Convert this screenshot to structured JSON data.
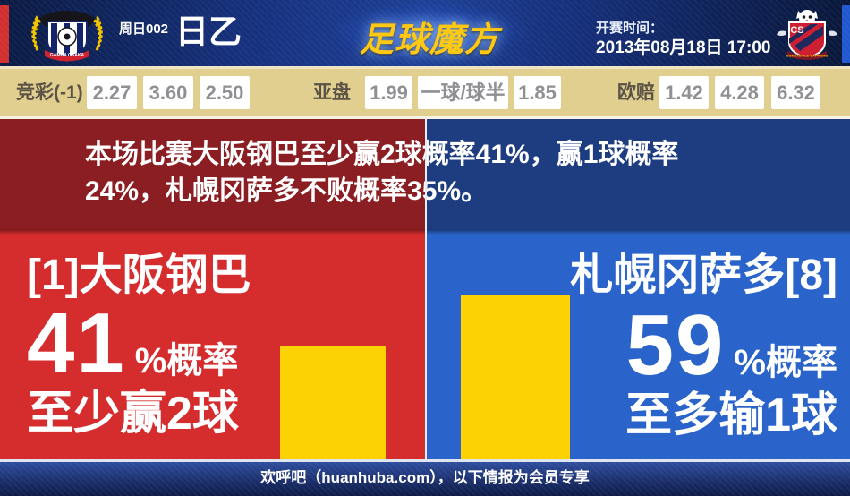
{
  "header": {
    "match_code": "周日002",
    "league": "日乙",
    "site_logo": "足球魔方",
    "kickoff_label": "开赛时间：",
    "kickoff_time": "2013年08月18日 17:00",
    "home_crest_ribbon": "GAMBA OSAKA",
    "away_crest_ribbon": "CONSADOLE SAPPORO",
    "away_crest_initials": "CS"
  },
  "odds_bar": {
    "groups": [
      {
        "label": "竞彩(-1)",
        "values": [
          "2.27",
          "3.60",
          "2.50"
        ]
      },
      {
        "label": "亚盘",
        "values": [
          "1.99",
          "一球/球半",
          "1.85"
        ]
      },
      {
        "label": "欧赔",
        "values": [
          "1.42",
          "4.28",
          "6.32"
        ]
      }
    ]
  },
  "summary_band": {
    "line1": "本场比赛大阪钢巴至少赢2球概率41%，赢1球概率",
    "line2": "24%，札幌冈萨多不败概率35%。"
  },
  "panels": {
    "home": {
      "team": "[1]大阪钢巴",
      "probability": 41,
      "percent_suffix": "%概率",
      "outcome": "至少赢2球"
    },
    "away": {
      "team": "札幌冈萨多[8]",
      "probability": 59,
      "percent_suffix": "%概率",
      "outcome": "至多输1球"
    }
  },
  "chart_data": {
    "type": "bar",
    "categories": [
      "大阪钢巴 至少赢2球",
      "札幌冈萨多 至多输1球"
    ],
    "values": [
      41,
      59
    ],
    "ylim": [
      0,
      100
    ],
    "bar_color": "#fdd205"
  },
  "footer": {
    "text": "欢呼吧（huanhuba.com），以下情报为会员专享"
  },
  "colors": {
    "header_navy": "#16317e",
    "odds_bar_bg": "#e0cf8f",
    "band_maroon": "#8a1e22",
    "band_navy": "#1e3c80",
    "panel_red": "#d52c2e",
    "panel_blue": "#2a63c9",
    "bar_yellow": "#fdd205",
    "footer_navy": "#1b2f6c"
  }
}
